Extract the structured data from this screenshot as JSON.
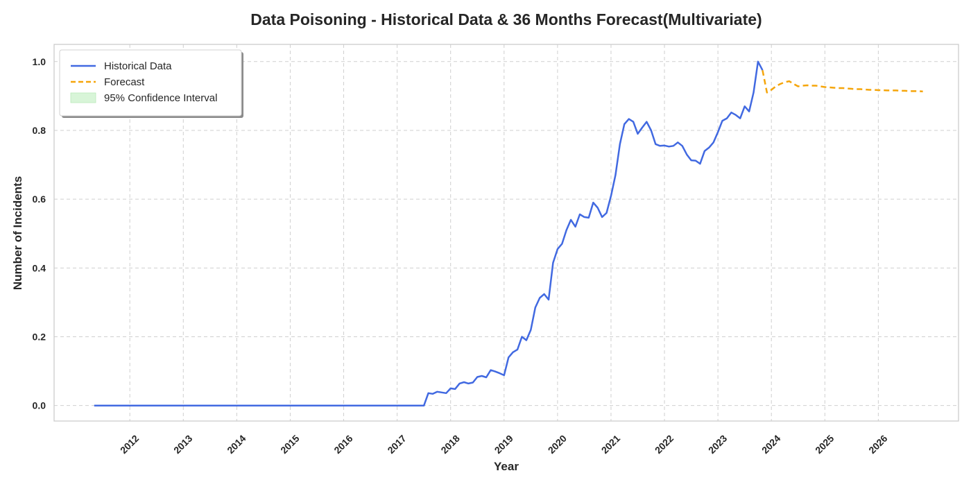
{
  "chart_data": {
    "type": "line",
    "title": "Data Poisoning - Historical Data & 36 Months Forecast(Multivariate)",
    "xlabel": "Year",
    "ylabel": "Number of Incidents",
    "x_ticks": [
      "2012",
      "2013",
      "2014",
      "2015",
      "2016",
      "2017",
      "2018",
      "2019",
      "2020",
      "2021",
      "2022",
      "2023",
      "2024",
      "2025",
      "2026"
    ],
    "y_ticks": [
      "0.0",
      "0.2",
      "0.4",
      "0.6",
      "0.8",
      "1.0"
    ],
    "xlim": [
      "2010-08",
      "2027-07"
    ],
    "ylim": [
      -0.045,
      1.05
    ],
    "grid": true,
    "legend_position": "top-left",
    "legend": [
      "Historical Data",
      "Forecast",
      "95% Confidence Interval"
    ],
    "colors": {
      "historical": "#4169e1",
      "forecast": "#f5a50a",
      "confidence": "#d8f5d8"
    },
    "series": [
      {
        "name": "Historical Data",
        "points": [
          [
            "2011-05",
            0.0
          ],
          [
            "2017-07",
            0.0
          ],
          [
            "2017-08",
            0.036
          ],
          [
            "2017-09",
            0.034
          ],
          [
            "2017-10",
            0.04
          ],
          [
            "2017-11",
            0.038
          ],
          [
            "2017-12",
            0.036
          ],
          [
            "2018-01",
            0.05
          ],
          [
            "2018-02",
            0.048
          ],
          [
            "2018-03",
            0.064
          ],
          [
            "2018-04",
            0.068
          ],
          [
            "2018-05",
            0.064
          ],
          [
            "2018-06",
            0.067
          ],
          [
            "2018-07",
            0.083
          ],
          [
            "2018-08",
            0.086
          ],
          [
            "2018-09",
            0.082
          ],
          [
            "2018-10",
            0.103
          ],
          [
            "2018-11",
            0.099
          ],
          [
            "2018-12",
            0.094
          ],
          [
            "2019-01",
            0.088
          ],
          [
            "2019-02",
            0.14
          ],
          [
            "2019-03",
            0.155
          ],
          [
            "2019-04",
            0.163
          ],
          [
            "2019-05",
            0.2
          ],
          [
            "2019-06",
            0.19
          ],
          [
            "2019-07",
            0.22
          ],
          [
            "2019-08",
            0.285
          ],
          [
            "2019-09",
            0.313
          ],
          [
            "2019-10",
            0.324
          ],
          [
            "2019-11",
            0.308
          ],
          [
            "2019-12",
            0.415
          ],
          [
            "2020-01",
            0.455
          ],
          [
            "2020-02",
            0.47
          ],
          [
            "2020-03",
            0.51
          ],
          [
            "2020-04",
            0.54
          ],
          [
            "2020-05",
            0.52
          ],
          [
            "2020-06",
            0.556
          ],
          [
            "2020-07",
            0.548
          ],
          [
            "2020-08",
            0.546
          ],
          [
            "2020-09",
            0.59
          ],
          [
            "2020-10",
            0.575
          ],
          [
            "2020-11",
            0.548
          ],
          [
            "2020-12",
            0.56
          ],
          [
            "2021-01",
            0.61
          ],
          [
            "2021-02",
            0.67
          ],
          [
            "2021-03",
            0.76
          ],
          [
            "2021-04",
            0.818
          ],
          [
            "2021-05",
            0.833
          ],
          [
            "2021-06",
            0.825
          ],
          [
            "2021-07",
            0.79
          ],
          [
            "2021-08",
            0.808
          ],
          [
            "2021-09",
            0.825
          ],
          [
            "2021-10",
            0.8
          ],
          [
            "2021-11",
            0.76
          ],
          [
            "2021-12",
            0.755
          ],
          [
            "2022-01",
            0.756
          ],
          [
            "2022-02",
            0.753
          ],
          [
            "2022-03",
            0.755
          ],
          [
            "2022-04",
            0.765
          ],
          [
            "2022-05",
            0.755
          ],
          [
            "2022-06",
            0.73
          ],
          [
            "2022-07",
            0.713
          ],
          [
            "2022-08",
            0.712
          ],
          [
            "2022-09",
            0.703
          ],
          [
            "2022-10",
            0.74
          ],
          [
            "2022-11",
            0.75
          ],
          [
            "2022-12",
            0.765
          ],
          [
            "2023-01",
            0.795
          ],
          [
            "2023-02",
            0.828
          ],
          [
            "2023-03",
            0.835
          ],
          [
            "2023-04",
            0.852
          ],
          [
            "2023-05",
            0.845
          ],
          [
            "2023-06",
            0.835
          ],
          [
            "2023-07",
            0.87
          ],
          [
            "2023-08",
            0.855
          ],
          [
            "2023-09",
            0.91
          ],
          [
            "2023-10",
            1.0
          ],
          [
            "2023-11",
            0.975
          ]
        ]
      },
      {
        "name": "Forecast",
        "points": [
          [
            "2023-11",
            0.975
          ],
          [
            "2023-12",
            0.91
          ],
          [
            "2024-01",
            0.918
          ],
          [
            "2024-02",
            0.928
          ],
          [
            "2024-03",
            0.935
          ],
          [
            "2024-04",
            0.94
          ],
          [
            "2024-05",
            0.943
          ],
          [
            "2024-06",
            0.935
          ],
          [
            "2024-07",
            0.928
          ],
          [
            "2024-08",
            0.93
          ],
          [
            "2024-09",
            0.931
          ],
          [
            "2024-10",
            0.93
          ],
          [
            "2024-11",
            0.93
          ],
          [
            "2024-12",
            0.928
          ],
          [
            "2025-01",
            0.926
          ],
          [
            "2025-02",
            0.925
          ],
          [
            "2025-03",
            0.924
          ],
          [
            "2025-04",
            0.923
          ],
          [
            "2025-05",
            0.923
          ],
          [
            "2025-06",
            0.922
          ],
          [
            "2025-07",
            0.921
          ],
          [
            "2025-08",
            0.92
          ],
          [
            "2025-09",
            0.92
          ],
          [
            "2025-10",
            0.919
          ],
          [
            "2025-11",
            0.918
          ],
          [
            "2025-12",
            0.918
          ],
          [
            "2026-01",
            0.917
          ],
          [
            "2026-02",
            0.917
          ],
          [
            "2026-03",
            0.916
          ],
          [
            "2026-04",
            0.916
          ],
          [
            "2026-05",
            0.916
          ],
          [
            "2026-06",
            0.915
          ],
          [
            "2026-07",
            0.915
          ],
          [
            "2026-08",
            0.914
          ],
          [
            "2026-09",
            0.914
          ],
          [
            "2026-10",
            0.914
          ],
          [
            "2026-11",
            0.913
          ]
        ]
      }
    ]
  }
}
